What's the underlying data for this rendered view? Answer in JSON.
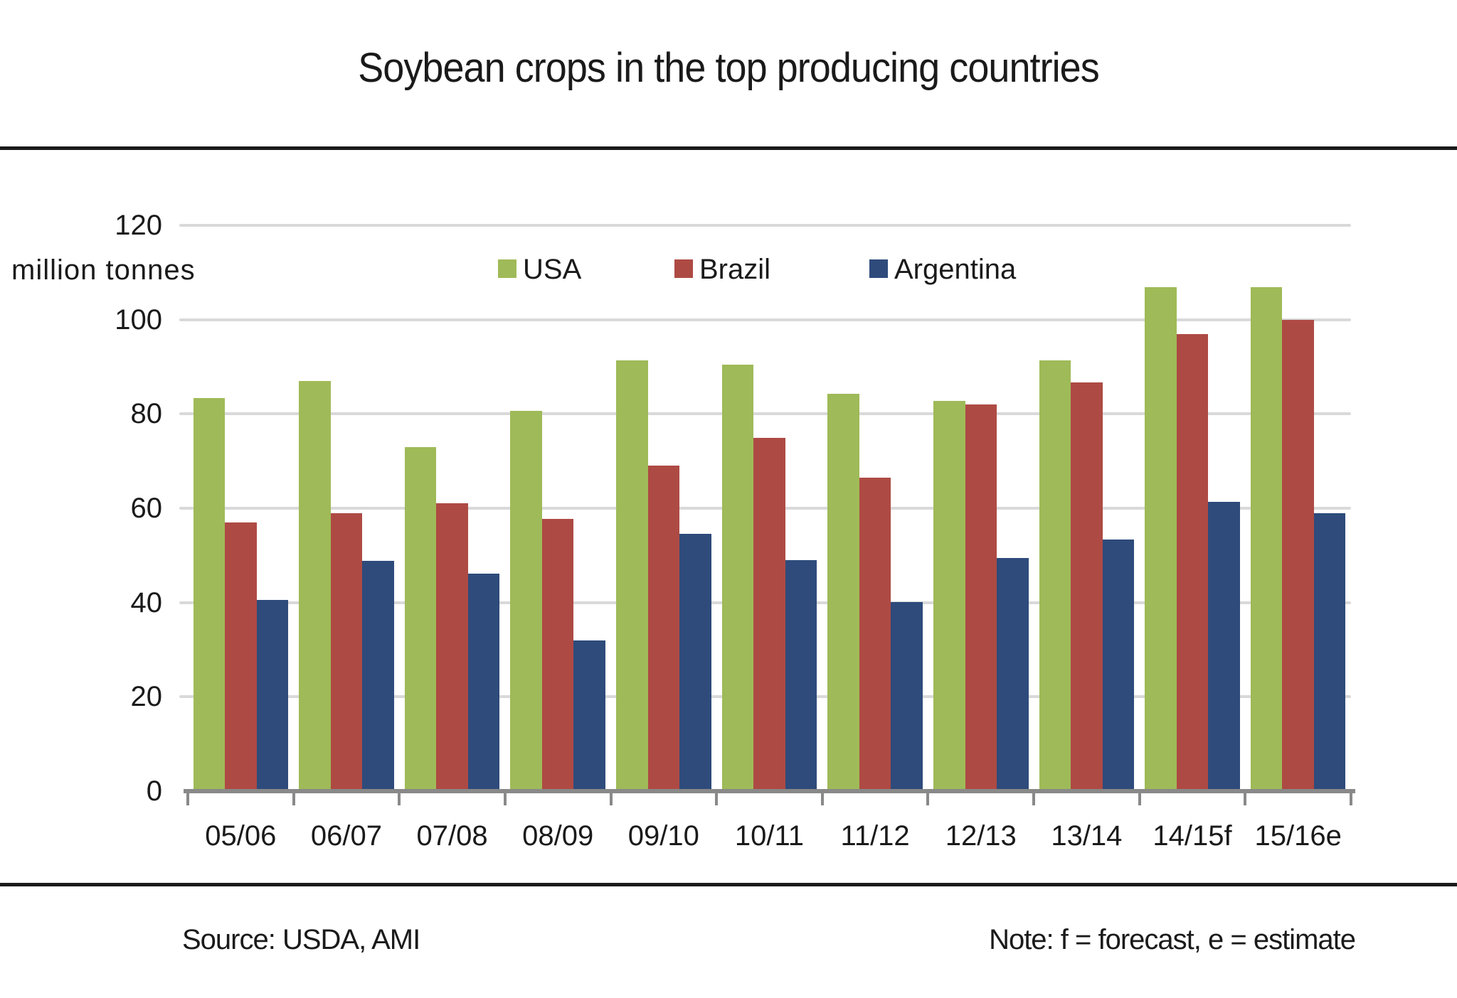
{
  "slide": {
    "title": "Soybean crops in the top producing countries",
    "source": "Source: USDA, AMI",
    "note": "Note: f = forecast, e = estimate"
  },
  "chart_data": {
    "type": "bar",
    "title": "Soybean crops in the top producing countries",
    "unit_label": "million tonnes",
    "categories": [
      "05/06",
      "06/07",
      "07/08",
      "08/09",
      "09/10",
      "10/11",
      "11/12",
      "12/13",
      "13/14",
      "14/15f",
      "15/16e"
    ],
    "series": [
      {
        "name": "USA",
        "color": "#9FBA58",
        "values": [
          83.4,
          87.0,
          72.9,
          80.7,
          91.4,
          90.5,
          84.2,
          82.7,
          91.4,
          106.9,
          106.9
        ]
      },
      {
        "name": "Brazil",
        "color": "#AE4A44",
        "values": [
          57.0,
          59.0,
          61.0,
          57.8,
          69.0,
          75.0,
          66.5,
          82.0,
          86.7,
          97.0,
          100.0
        ]
      },
      {
        "name": "Argentina",
        "color": "#2E4B7B",
        "values": [
          40.5,
          48.8,
          46.2,
          32.0,
          54.5,
          49.0,
          40.1,
          49.4,
          53.4,
          61.4,
          59.0
        ]
      }
    ],
    "ylim": [
      0,
      120
    ],
    "ytick_interval": 20,
    "grid": true,
    "legend_position": "top-center-inside",
    "gridline_color": "#D9D9D9",
    "axis_color": "#898989",
    "text_color": "#1A1A1A"
  }
}
